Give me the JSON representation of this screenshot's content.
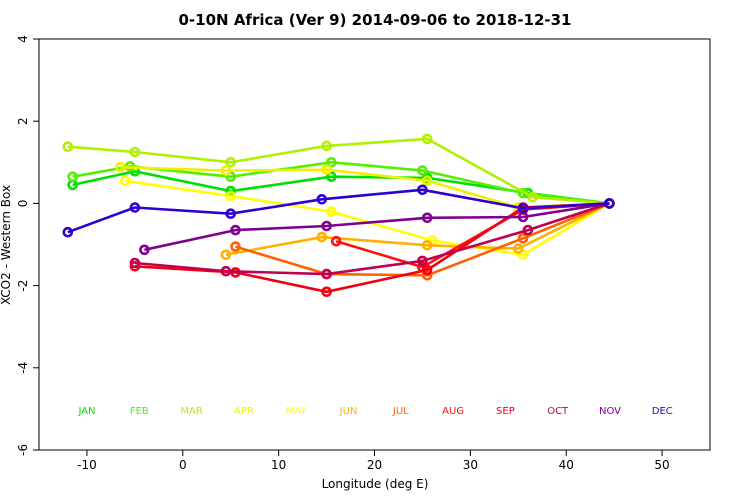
{
  "chart_data": {
    "type": "line",
    "title": "0-10N Africa (Ver 9)   2014-09-06 to 2018-12-31",
    "xlabel": "Longitude (deg E)",
    "ylabel": "XCO2 - Western Box",
    "xlim": [
      -15,
      55
    ],
    "ylim": [
      -6,
      4
    ],
    "xticks": [
      -10,
      0,
      10,
      20,
      30,
      40,
      50
    ],
    "yticks": [
      -6,
      -4,
      -2,
      0,
      2,
      4
    ],
    "grid": false,
    "series": [
      {
        "name": "JAN",
        "color": "#00e000",
        "x": [
          -11.5,
          -5.0,
          5.0,
          15.5,
          25.5,
          36.0,
          44.5
        ],
        "y": [
          0.45,
          0.78,
          0.3,
          0.65,
          0.62,
          0.25,
          0.0
        ]
      },
      {
        "name": "FEB",
        "color": "#50f000",
        "x": [
          -11.5,
          -5.5,
          5.0,
          15.5,
          25.0,
          35.5,
          44.5
        ],
        "y": [
          0.65,
          0.9,
          0.65,
          1.0,
          0.8,
          0.25,
          0.0
        ]
      },
      {
        "name": "MAR",
        "color": "#b0f000",
        "x": [
          -12.0,
          -5.0,
          5.0,
          15.0,
          25.5,
          36.5,
          44.5
        ],
        "y": [
          1.38,
          1.25,
          1.0,
          1.4,
          1.57,
          0.15,
          0.0
        ]
      },
      {
        "name": "APR",
        "color": "#f0f000",
        "x": [
          -6.5,
          4.5,
          15.0,
          25.5,
          35.0,
          44.5
        ],
        "y": [
          0.88,
          0.8,
          0.82,
          0.55,
          -0.1,
          0.0
        ]
      },
      {
        "name": "MAY",
        "color": "#ffff00",
        "x": [
          -6.0,
          5.0,
          15.5,
          26.0,
          35.5,
          44.5
        ],
        "y": [
          0.55,
          0.18,
          -0.2,
          -0.9,
          -1.25,
          0.0
        ]
      },
      {
        "name": "JUN",
        "color": "#ffb000",
        "x": [
          4.5,
          14.5,
          25.5,
          35.0,
          44.5
        ],
        "y": [
          -1.25,
          -0.82,
          -1.02,
          -1.1,
          0.0
        ]
      },
      {
        "name": "JUL",
        "color": "#ff6000",
        "x": [
          5.5,
          15.0,
          25.5,
          35.5,
          44.5
        ],
        "y": [
          -1.05,
          -1.72,
          -1.75,
          -0.85,
          0.0
        ]
      },
      {
        "name": "AUG",
        "color": "#ff1010",
        "x": [
          16.0,
          25.0,
          35.5,
          44.5
        ],
        "y": [
          -0.92,
          -1.55,
          -0.15,
          0.0
        ]
      },
      {
        "name": "SEP",
        "color": "#f00010",
        "x": [
          -5.0,
          5.5,
          15.0,
          25.5,
          35.5,
          44.5
        ],
        "y": [
          -1.53,
          -1.68,
          -2.15,
          -1.62,
          -0.1,
          0.0
        ]
      },
      {
        "name": "OCT",
        "color": "#c00050",
        "x": [
          -5.0,
          4.5,
          15.0,
          25.0,
          36.0,
          44.5
        ],
        "y": [
          -1.45,
          -1.65,
          -1.72,
          -1.4,
          -0.65,
          0.0
        ]
      },
      {
        "name": "NOV",
        "color": "#800090",
        "x": [
          -4.0,
          5.5,
          15.0,
          25.5,
          35.5,
          44.5
        ],
        "y": [
          -1.13,
          -0.65,
          -0.55,
          -0.35,
          -0.33,
          0.0
        ]
      },
      {
        "name": "DEC",
        "color": "#3000d0",
        "x": [
          -12.0,
          -5.0,
          5.0,
          14.5,
          25.0,
          35.5,
          44.5
        ],
        "y": [
          -0.7,
          -0.1,
          -0.25,
          0.1,
          0.33,
          -0.12,
          0.0
        ]
      }
    ],
    "legend": {
      "placement": "bottom",
      "labels": [
        "JAN",
        "FEB",
        "MAR",
        "APR",
        "MAY",
        "JUN",
        "JUL",
        "AUG",
        "SEP",
        "OCT",
        "NOV",
        "DEC"
      ]
    }
  }
}
